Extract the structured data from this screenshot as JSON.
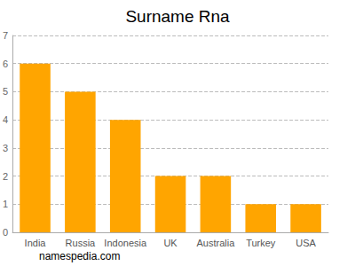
{
  "chart_data": {
    "type": "bar",
    "title": "Surname Rna",
    "categories": [
      "India",
      "Russia",
      "Indonesia",
      "UK",
      "Australia",
      "Turkey",
      "USA"
    ],
    "values": [
      6,
      5,
      4,
      2,
      2,
      1,
      1
    ],
    "color": "#ffa500",
    "ylim": [
      0,
      7
    ],
    "yticks": [
      0,
      1,
      2,
      3,
      4,
      5,
      6,
      7
    ],
    "grid": true,
    "annotations": [
      "namespedia.com"
    ]
  }
}
